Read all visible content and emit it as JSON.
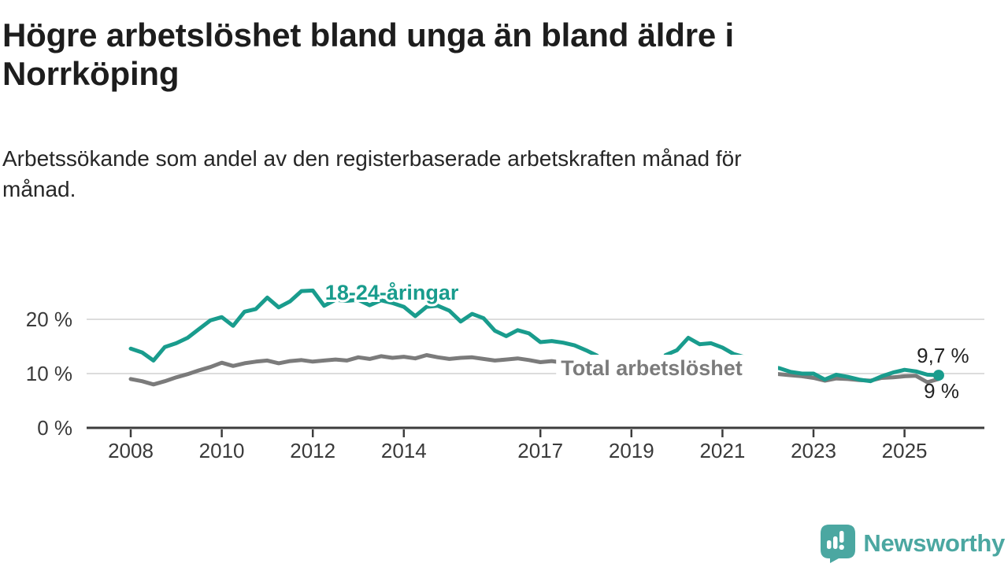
{
  "header": {
    "title": "Högre arbetslöshet bland unga än bland äldre i\nNorrköping",
    "subtitle": "Arbetssökande som andel av den registerbaserade arbetskraften månad för\nmånad."
  },
  "branding": {
    "logo_text": "Newsworthy",
    "logo_icon": "newsworthy-bubble-bar-chart-icon",
    "logo_color": "#4BA7A1"
  },
  "chart_data": {
    "type": "line",
    "title": "Högre arbetslöshet bland unga än bland äldre i Norrköping",
    "subtitle": "Arbetssökande som andel av den registerbaserade arbetskraften månad för månad.",
    "x_unit": "year",
    "x_start": 2008,
    "x_step": 0.25,
    "xlim": [
      2007.0,
      2026.75
    ],
    "ylim": [
      0,
      27.5
    ],
    "grid": "horizontal",
    "legend_position": "inline-labels",
    "x_ticks": [
      {
        "value": 2008,
        "label": "2008"
      },
      {
        "value": 2010,
        "label": "2010"
      },
      {
        "value": 2012,
        "label": "2012"
      },
      {
        "value": 2014,
        "label": "2014"
      },
      {
        "value": 2017,
        "label": "2017"
      },
      {
        "value": 2019,
        "label": "2019"
      },
      {
        "value": 2021,
        "label": "2021"
      },
      {
        "value": 2023,
        "label": "2023"
      },
      {
        "value": 2025,
        "label": "2025"
      }
    ],
    "y_ticks": [
      {
        "value": 0,
        "label": "0 %"
      },
      {
        "value": 10,
        "label": "10 %"
      },
      {
        "value": 20,
        "label": "20 %"
      }
    ],
    "series": [
      {
        "name": "Total arbetslöshet",
        "color": "#7B7B7B",
        "label": {
          "text": "Total arbetslöshet",
          "x": 2017.45,
          "value": 9.7,
          "background": true,
          "halo": true
        },
        "end_label": {
          "text": "9 %",
          "x": 2026.2,
          "value": 5.5
        },
        "end_dot": false,
        "values": [
          9.0,
          8.6,
          8.0,
          8.6,
          9.3,
          9.9,
          10.6,
          11.2,
          12.0,
          11.4,
          11.9,
          12.2,
          12.4,
          11.9,
          12.3,
          12.5,
          12.2,
          12.4,
          12.6,
          12.4,
          13.0,
          12.7,
          13.2,
          12.9,
          13.1,
          12.8,
          13.4,
          13.0,
          12.7,
          12.9,
          13.0,
          12.7,
          12.4,
          12.6,
          12.8,
          12.5,
          12.1,
          12.3,
          12.0,
          11.7,
          11.5,
          11.3,
          11.1,
          10.9,
          10.6,
          10.4,
          10.3,
          10.5,
          10.9,
          11.9,
          12.0,
          11.8,
          11.5,
          11.1,
          10.7,
          10.3,
          10.1,
          9.9,
          9.7,
          9.5,
          9.2,
          8.7,
          9.1,
          9.0,
          8.8,
          8.7,
          9.2,
          9.3,
          9.5,
          9.6,
          8.4,
          9.0
        ]
      },
      {
        "name": "18-24-åringar",
        "color": "#199C8D",
        "label": {
          "text": "18-24-åringar",
          "x": 2012.27,
          "value": 23.6,
          "background": false,
          "halo": true
        },
        "end_label": {
          "text": "9,7 %",
          "x": 2026.42,
          "value": 12.0
        },
        "end_dot": true,
        "values": [
          14.6,
          13.9,
          12.4,
          14.9,
          15.6,
          16.6,
          18.2,
          19.8,
          20.4,
          18.8,
          21.4,
          21.9,
          24.0,
          22.2,
          23.3,
          25.2,
          25.3,
          22.5,
          23.6,
          23.4,
          23.6,
          22.6,
          23.5,
          23.0,
          22.3,
          20.6,
          22.3,
          22.5,
          21.6,
          19.6,
          21.0,
          20.2,
          17.9,
          16.9,
          18.0,
          17.4,
          15.8,
          16.0,
          15.7,
          15.2,
          14.3,
          13.3,
          null,
          null,
          null,
          null,
          null,
          13.4,
          14.3,
          16.6,
          15.4,
          15.6,
          14.8,
          13.6,
          13.0,
          12.0,
          11.3,
          11.0,
          10.3,
          10.0,
          10.0,
          8.9,
          9.8,
          9.4,
          8.9,
          8.6,
          9.5,
          10.2,
          10.7,
          10.4,
          9.8,
          9.7
        ]
      }
    ],
    "annotations": {
      "latest_values": [
        {
          "series": "18-24-åringar",
          "label": "9,7 %"
        },
        {
          "series": "Total arbetslöshet",
          "label": "9 %"
        }
      ]
    },
    "colors": {
      "grid": "#DCDCDC",
      "axis": "#3C3C3C",
      "tick_label": "#3A3A3A",
      "end_label_text": "#222222"
    }
  }
}
